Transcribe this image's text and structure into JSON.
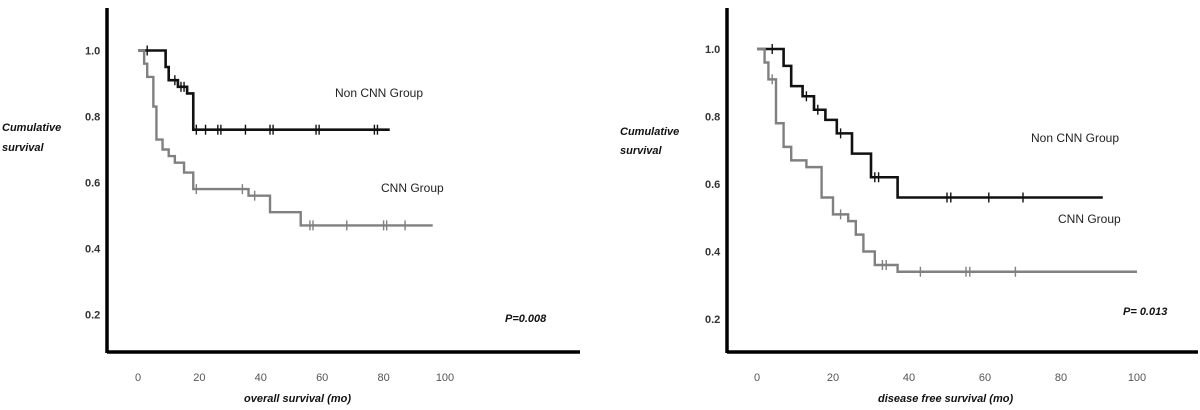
{
  "chart_data": [
    {
      "type": "line",
      "step": true,
      "xlabel": "overall survival (mo)",
      "ylabel": "Cumulative survival",
      "xlim": [
        0,
        100
      ],
      "ylim": [
        0.0,
        1.0
      ],
      "x_ticks": [
        "0",
        "20",
        "40",
        "60",
        "80",
        "100"
      ],
      "y_ticks": [
        "0.2",
        "0.4",
        "0.6",
        "0.8",
        "1.0"
      ],
      "annotation": "P=0.008",
      "series": [
        {
          "name": "Non CNN Group",
          "color": "#111111",
          "steps": [
            [
              0,
              1.0
            ],
            [
              9,
              0.95
            ],
            [
              10,
              0.91
            ],
            [
              13,
              0.89
            ],
            [
              16,
              0.87
            ],
            [
              18,
              0.76
            ],
            [
              82,
              0.76
            ]
          ],
          "censored": [
            3,
            12,
            14,
            15,
            19,
            22,
            26,
            27,
            35,
            43,
            44,
            58,
            59,
            77,
            78
          ]
        },
        {
          "name": "CNN Group",
          "color": "#808080",
          "steps": [
            [
              0,
              1.0
            ],
            [
              2,
              0.96
            ],
            [
              3,
              0.92
            ],
            [
              5,
              0.83
            ],
            [
              6,
              0.73
            ],
            [
              8,
              0.7
            ],
            [
              10,
              0.68
            ],
            [
              12,
              0.66
            ],
            [
              15,
              0.63
            ],
            [
              18,
              0.58
            ],
            [
              36,
              0.56
            ],
            [
              43,
              0.51
            ],
            [
              53,
              0.47
            ],
            [
              96,
              0.47
            ]
          ],
          "censored": [
            19,
            34,
            38,
            56,
            57,
            68,
            80,
            81,
            87
          ]
        }
      ]
    },
    {
      "type": "line",
      "step": true,
      "xlabel": "disease free survival (mo)",
      "ylabel": "Cumulative survival",
      "xlim": [
        0,
        100
      ],
      "ylim": [
        0.0,
        1.0
      ],
      "x_ticks": [
        "0",
        "20",
        "40",
        "60",
        "80",
        "100"
      ],
      "y_ticks": [
        "0.2",
        "0.4",
        "0.6",
        "0.8",
        "1.0"
      ],
      "annotation": "P= 0.013",
      "series": [
        {
          "name": "Non CNN Group",
          "color": "#111111",
          "steps": [
            [
              0,
              1.0
            ],
            [
              7,
              0.95
            ],
            [
              9,
              0.89
            ],
            [
              12,
              0.86
            ],
            [
              15,
              0.82
            ],
            [
              18,
              0.79
            ],
            [
              21,
              0.75
            ],
            [
              25,
              0.69
            ],
            [
              30,
              0.62
            ],
            [
              37,
              0.56
            ],
            [
              91,
              0.56
            ]
          ],
          "censored": [
            4,
            13,
            16,
            22,
            31,
            32,
            50,
            51,
            61,
            70
          ]
        },
        {
          "name": "CNN Group",
          "color": "#808080",
          "steps": [
            [
              0,
              1.0
            ],
            [
              2,
              0.96
            ],
            [
              3,
              0.91
            ],
            [
              5,
              0.78
            ],
            [
              7,
              0.71
            ],
            [
              9,
              0.67
            ],
            [
              13,
              0.65
            ],
            [
              17,
              0.56
            ],
            [
              20,
              0.51
            ],
            [
              24,
              0.49
            ],
            [
              26,
              0.45
            ],
            [
              28,
              0.4
            ],
            [
              31,
              0.36
            ],
            [
              37,
              0.34
            ],
            [
              100,
              0.34
            ]
          ],
          "censored": [
            4,
            22,
            33,
            34,
            43,
            55,
            56,
            68
          ]
        }
      ]
    }
  ]
}
